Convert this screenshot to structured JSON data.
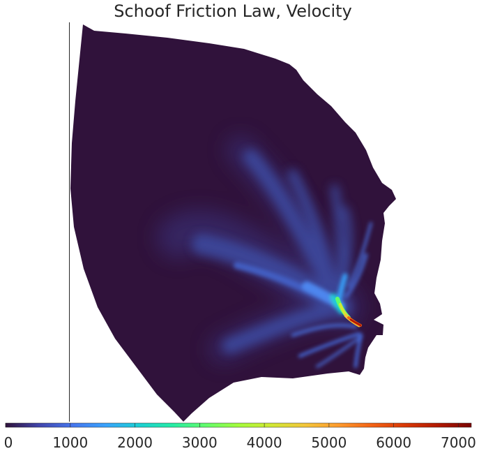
{
  "chart_data": {
    "type": "heatmap",
    "title": "Schoof Friction Law, Velocity",
    "colorbar": {
      "location": "bottom",
      "colormap": "turbo",
      "range": [
        0,
        7200
      ],
      "ticks": [
        0,
        1000,
        2000,
        3000,
        4000,
        5000,
        6000,
        7000
      ],
      "tick_labels": [
        "0",
        "1000",
        "2000",
        "3000",
        "4000",
        "5000",
        "6000",
        "7000"
      ]
    },
    "axes_visible": false,
    "background_value": 0,
    "max_value_shown": 7200,
    "colors": {
      "background_field": "#30123b",
      "colorbar_stops": [
        "#30123b",
        "#4145ab",
        "#4675ed",
        "#39a2fc",
        "#1bcfd4",
        "#24eca6",
        "#61fc6c",
        "#a4fc3b",
        "#d1e834",
        "#f3c63a",
        "#fe9b2d",
        "#f36315",
        "#d93806",
        "#b11901",
        "#7a0403"
      ]
    }
  }
}
